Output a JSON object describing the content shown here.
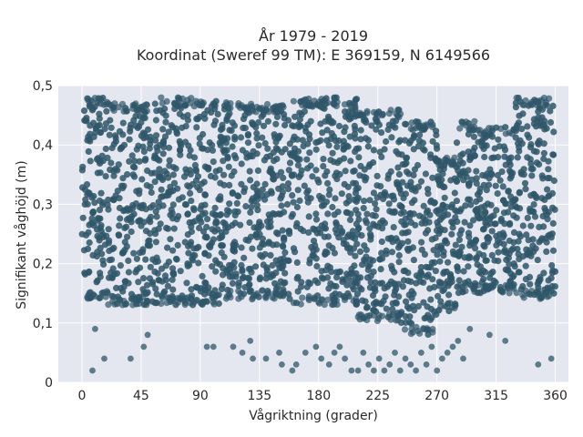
{
  "chart_data": {
    "type": "scatter",
    "title_lines": [
      "År 1979 - 2019",
      "Koordinat (Sweref 99 TM): E 369159, N 6149566"
    ],
    "xlabel": "Vågriktning (grader)",
    "ylabel": "Signifikant våghöjd (m)",
    "xlim": [
      -18,
      370
    ],
    "ylim": [
      0,
      0.5
    ],
    "xticks": [
      0,
      45,
      90,
      135,
      180,
      225,
      270,
      315,
      360
    ],
    "xtick_labels": [
      "0",
      "45",
      "90",
      "135",
      "180",
      "225",
      "270",
      "315",
      "360"
    ],
    "yticks": [
      0,
      0.1,
      0.2,
      0.3,
      0.4,
      0.5
    ],
    "ytick_labels": [
      "0",
      "0,1",
      "0,2",
      "0,3",
      "0,4",
      "0,5"
    ],
    "grid": true,
    "legend": "none",
    "marker_color": "#2f5669",
    "plot_background": "#e5e7f0",
    "series": [
      {
        "density_bands": [
          {
            "x": [
              0,
              20
            ],
            "y": [
              0.14,
              0.48
            ]
          },
          {
            "x": [
              20,
              60
            ],
            "y": [
              0.13,
              0.47
            ]
          },
          {
            "x": [
              60,
              110
            ],
            "y": [
              0.13,
              0.48
            ]
          },
          {
            "x": [
              110,
              160
            ],
            "y": [
              0.14,
              0.47
            ]
          },
          {
            "x": [
              160,
              210
            ],
            "y": [
              0.13,
              0.48
            ]
          },
          {
            "x": [
              210,
              245
            ],
            "y": [
              0.1,
              0.46
            ]
          },
          {
            "x": [
              245,
              270
            ],
            "y": [
              0.08,
              0.44
            ]
          },
          {
            "x": [
              270,
              285
            ],
            "y": [
              0.12,
              0.38
            ]
          },
          {
            "x": [
              285,
              300
            ],
            "y": [
              0.15,
              0.44
            ]
          },
          {
            "x": [
              300,
              330
            ],
            "y": [
              0.15,
              0.43
            ]
          },
          {
            "x": [
              330,
              360
            ],
            "y": [
              0.14,
              0.48
            ]
          }
        ],
        "sparse_points": [
          [
            8,
            0.02
          ],
          [
            17,
            0.04
          ],
          [
            37,
            0.04
          ],
          [
            47,
            0.06
          ],
          [
            50,
            0.08
          ],
          [
            10,
            0.09
          ],
          [
            95,
            0.06
          ],
          [
            100,
            0.06
          ],
          [
            115,
            0.06
          ],
          [
            122,
            0.05
          ],
          [
            130,
            0.04
          ],
          [
            128,
            0.07
          ],
          [
            140,
            0.04
          ],
          [
            150,
            0.05
          ],
          [
            152,
            0.03
          ],
          [
            160,
            0.02
          ],
          [
            163,
            0.03
          ],
          [
            170,
            0.05
          ],
          [
            178,
            0.06
          ],
          [
            182,
            0.04
          ],
          [
            188,
            0.03
          ],
          [
            192,
            0.05
          ],
          [
            196,
            0.06
          ],
          [
            200,
            0.04
          ],
          [
            205,
            0.02
          ],
          [
            210,
            0.02
          ],
          [
            214,
            0.05
          ],
          [
            218,
            0.03
          ],
          [
            222,
            0.02
          ],
          [
            226,
            0.04
          ],
          [
            230,
            0.02
          ],
          [
            234,
            0.03
          ],
          [
            238,
            0.05
          ],
          [
            242,
            0.02
          ],
          [
            246,
            0.04
          ],
          [
            250,
            0.03
          ],
          [
            254,
            0.02
          ],
          [
            258,
            0.05
          ],
          [
            262,
            0.03
          ],
          [
            266,
            0.06
          ],
          [
            270,
            0.02
          ],
          [
            274,
            0.04
          ],
          [
            278,
            0.05
          ],
          [
            282,
            0.06
          ],
          [
            286,
            0.07
          ],
          [
            290,
            0.04
          ],
          [
            295,
            0.09
          ],
          [
            310,
            0.08
          ],
          [
            322,
            0.07
          ],
          [
            347,
            0.03
          ],
          [
            357,
            0.04
          ]
        ]
      }
    ]
  }
}
